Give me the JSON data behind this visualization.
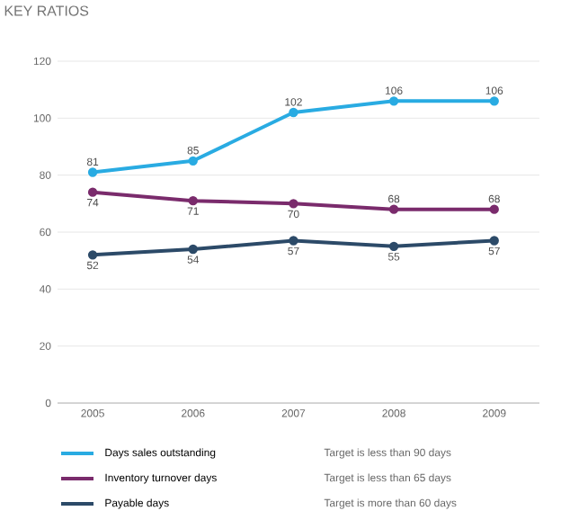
{
  "chart_data": {
    "type": "line",
    "title": "KEY RATIOS",
    "categories": [
      "2005",
      "2006",
      "2007",
      "2008",
      "2009"
    ],
    "series": [
      {
        "name": "Days sales outstanding",
        "color": "#29abe2",
        "values": [
          81,
          85,
          102,
          106,
          106
        ]
      },
      {
        "name": "Inventory turnover days",
        "color": "#7a2b6c",
        "values": [
          74,
          71,
          70,
          68,
          68
        ]
      },
      {
        "name": "Payable days",
        "color": "#2c4a68",
        "values": [
          52,
          54,
          57,
          55,
          57
        ]
      }
    ],
    "annotations": [
      "Target is less than 90 days",
      "Target is less than 65 days",
      "Target is more than 60 days"
    ],
    "ylim": [
      0,
      120
    ],
    "yticks": [
      0,
      20,
      40,
      60,
      80,
      100,
      120
    ],
    "grid": "y",
    "legend": "bottom",
    "marker": "circle",
    "data_labels": true
  }
}
